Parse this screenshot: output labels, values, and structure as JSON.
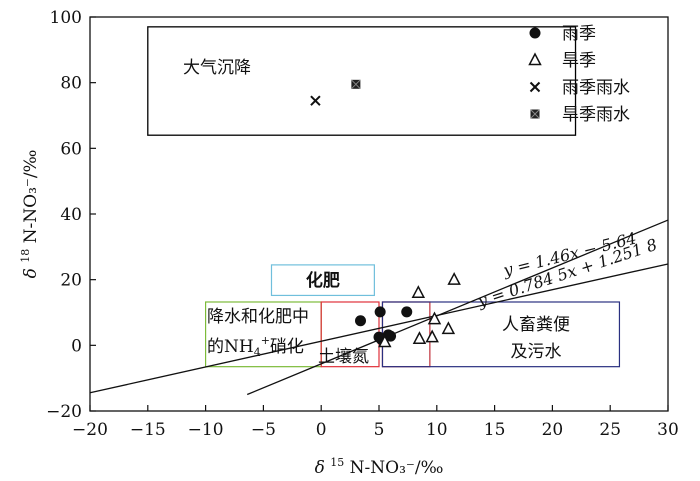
{
  "chart_data": {
    "type": "scatter",
    "xlim": [
      -20,
      30
    ],
    "ylim": [
      -20,
      100
    ],
    "x_ticks": [
      -20,
      -15,
      -10,
      -5,
      0,
      5,
      10,
      15,
      20,
      25,
      30
    ],
    "y_ticks": [
      -20,
      0,
      20,
      40,
      60,
      80,
      100
    ],
    "x_tick_labels": [
      "−20",
      "−15",
      "−10",
      "−5",
      "0",
      "5",
      "10",
      "15",
      "20",
      "25",
      "30"
    ],
    "y_tick_labels": [
      "−20",
      "0",
      "20",
      "40",
      "60",
      "80",
      "100"
    ],
    "xlabel_delta": "δ",
    "xlabel_sup": "15",
    "xlabel_rest": "N-NO₃⁻/‰",
    "ylabel_delta": "δ",
    "ylabel_sup": "18",
    "ylabel_rest": "N-NO₃⁻/‰",
    "grid": false,
    "legend_position": "top-right",
    "series": [
      {
        "name": "雨季",
        "marker": "circle",
        "points": [
          [
            3.4,
            7.5
          ],
          [
            5.1,
            10.2
          ],
          [
            7.4,
            10.2
          ],
          [
            5.0,
            2.5
          ],
          [
            5.8,
            3.2
          ],
          [
            6.0,
            2.8
          ],
          [
            5.2,
            1.8
          ]
        ]
      },
      {
        "name": "旱季",
        "marker": "triangle",
        "points": [
          [
            8.4,
            16.0
          ],
          [
            11.5,
            20.0
          ],
          [
            9.8,
            8.0
          ],
          [
            11.0,
            5.0
          ],
          [
            8.5,
            2.0
          ],
          [
            9.6,
            2.5
          ],
          [
            5.5,
            1.0
          ]
        ]
      },
      {
        "name": "雨季雨水",
        "marker": "x",
        "points": [
          [
            -0.5,
            74.5
          ]
        ]
      },
      {
        "name": "旱季雨水",
        "marker": "box-x",
        "points": [
          [
            3.0,
            79.5
          ]
        ]
      }
    ],
    "regions": [
      {
        "label": "大气沉降",
        "x": [
          -15,
          22
        ],
        "y": [
          64,
          97
        ],
        "color": "#000000"
      },
      {
        "label": "化肥",
        "x": [
          -4.3,
          4.6
        ],
        "y": [
          15.2,
          24.5
        ],
        "color": "#70bfdc"
      },
      {
        "label_line1": "降水和化肥中",
        "label_line2_a": "的NH",
        "label_line2_sub": "4",
        "label_line2_sup": "+",
        "label_line2_b": "硝化",
        "x": [
          -10,
          0
        ],
        "y": [
          -6.5,
          13.2
        ],
        "color": "#7dbb3a"
      },
      {
        "label": "土壤氮",
        "x": [
          0,
          5
        ],
        "y": [
          -6.5,
          13.2
        ],
        "color": "#e0303a"
      },
      {
        "label": "",
        "x": [
          5.3,
          9.4
        ],
        "y": [
          -6.5,
          13.2
        ],
        "color": "#c0303a"
      },
      {
        "label_line1": "人畜粪便",
        "label_line2": "及污水",
        "x": [
          5.3,
          25.8
        ],
        "y": [
          -6.5,
          13.2
        ],
        "color": "#2a3080"
      }
    ],
    "lines": [
      {
        "label": "y = 1.46x − 5.64",
        "slope": 1.46,
        "intercept": -5.64,
        "x_range": [
          -6.4,
          30
        ]
      },
      {
        "label": "y = 0.784 5x + 1.251 8",
        "slope": 0.7845,
        "intercept": 1.2518,
        "x_range": [
          -20,
          30
        ]
      }
    ]
  }
}
